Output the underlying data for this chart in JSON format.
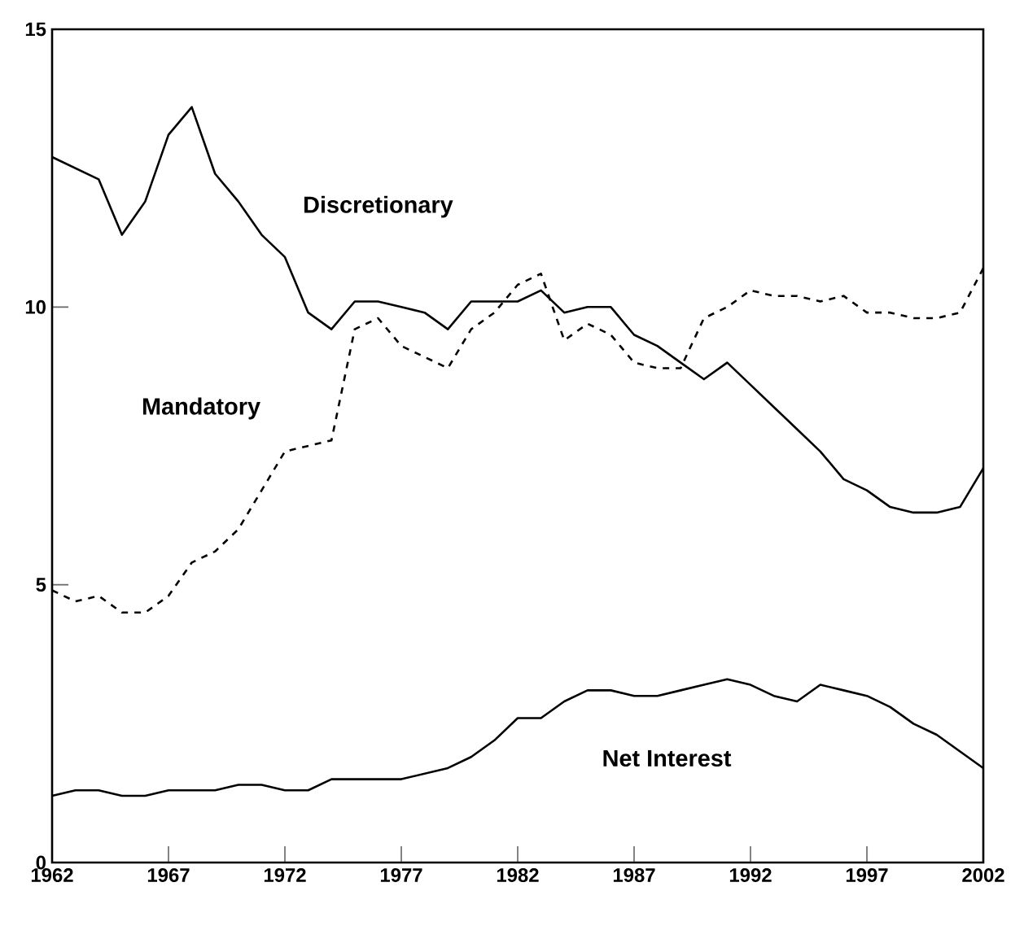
{
  "chart_data": {
    "type": "line",
    "x": [
      1962,
      1963,
      1964,
      1965,
      1966,
      1967,
      1968,
      1969,
      1970,
      1971,
      1972,
      1973,
      1974,
      1975,
      1976,
      1977,
      1978,
      1979,
      1980,
      1981,
      1982,
      1983,
      1984,
      1985,
      1986,
      1987,
      1988,
      1989,
      1990,
      1991,
      1992,
      1993,
      1994,
      1995,
      1996,
      1997,
      1998,
      1999,
      2000,
      2001,
      2002
    ],
    "series": [
      {
        "name": "Discretionary",
        "color": "#000000",
        "line_style": "solid",
        "values": [
          12.7,
          12.5,
          12.3,
          11.3,
          11.9,
          13.1,
          13.6,
          12.4,
          11.9,
          11.3,
          10.9,
          9.9,
          9.6,
          10.1,
          10.1,
          10.0,
          9.9,
          9.6,
          10.1,
          10.1,
          10.1,
          10.3,
          9.9,
          10.0,
          10.0,
          9.5,
          9.3,
          9.0,
          8.7,
          9.0,
          8.6,
          8.2,
          7.8,
          7.4,
          6.9,
          6.7,
          6.4,
          6.3,
          6.3,
          6.4,
          7.1
        ]
      },
      {
        "name": "Mandatory",
        "color": "#000000",
        "line_style": "dashed",
        "values": [
          4.9,
          4.7,
          4.8,
          4.5,
          4.5,
          4.8,
          5.4,
          5.6,
          6.0,
          6.7,
          7.4,
          7.5,
          7.6,
          9.6,
          9.8,
          9.3,
          9.1,
          8.9,
          9.6,
          9.9,
          10.4,
          10.6,
          9.4,
          9.7,
          9.5,
          9.0,
          8.9,
          8.9,
          9.8,
          10.0,
          10.3,
          10.2,
          10.2,
          10.1,
          10.2,
          9.9,
          9.9,
          9.8,
          9.8,
          9.9,
          10.7
        ]
      },
      {
        "name": "Net Interest",
        "color": "#000000",
        "line_style": "solid",
        "values": [
          1.2,
          1.3,
          1.3,
          1.2,
          1.2,
          1.3,
          1.3,
          1.3,
          1.4,
          1.4,
          1.3,
          1.3,
          1.5,
          1.5,
          1.5,
          1.5,
          1.6,
          1.7,
          1.9,
          2.2,
          2.6,
          2.6,
          2.9,
          3.1,
          3.1,
          3.0,
          3.0,
          3.1,
          3.2,
          3.3,
          3.2,
          3.0,
          2.9,
          3.2,
          3.1,
          3.0,
          2.8,
          2.5,
          2.3,
          2.0,
          1.7
        ]
      }
    ],
    "xlim": [
      1962,
      2002
    ],
    "ylim": [
      0,
      15
    ],
    "xticks": [
      1962,
      1967,
      1972,
      1977,
      1982,
      1987,
      1992,
      1997,
      2002
    ],
    "yticks": [
      0,
      5,
      10,
      15
    ],
    "grid": false,
    "legend": false
  }
}
